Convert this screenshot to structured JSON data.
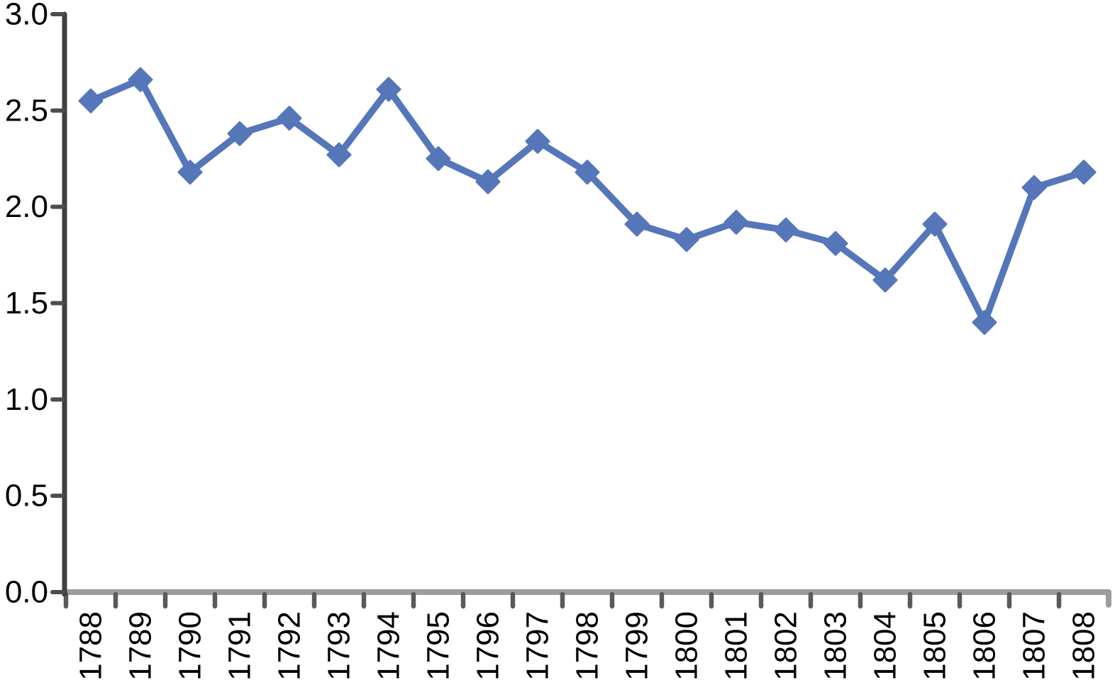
{
  "chart_data": {
    "type": "line",
    "x": [
      "1788",
      "1789",
      "1790",
      "1791",
      "1792",
      "1793",
      "1794",
      "1795",
      "1796",
      "1797",
      "1798",
      "1799",
      "1800",
      "1801",
      "1802",
      "1803",
      "1804",
      "1805",
      "1806",
      "1807",
      "1808"
    ],
    "values": [
      2.55,
      2.66,
      2.18,
      2.38,
      2.46,
      2.27,
      2.61,
      2.25,
      2.13,
      2.34,
      2.18,
      1.91,
      1.83,
      1.92,
      1.88,
      1.81,
      1.62,
      1.91,
      1.4,
      2.1,
      2.18
    ],
    "ylim": [
      0.0,
      3.0
    ],
    "ytick_step": 0.5,
    "ytick_labels": [
      "3.0",
      "2.5",
      "2.0",
      "1.5",
      "1.0",
      "0.5",
      "0.0"
    ],
    "xtick_label_rotation_deg": 90,
    "grid": "off",
    "legend": "none",
    "marker": "diamond",
    "colors": {
      "series": "#5577B9",
      "y_axis": "#3F3F3F",
      "y_tick": "#4D4D4D",
      "x_axis": "#9C9C9C",
      "x_tick": "#5A5A5A",
      "label_text": "#000000",
      "background": "#FFFFFF"
    }
  }
}
